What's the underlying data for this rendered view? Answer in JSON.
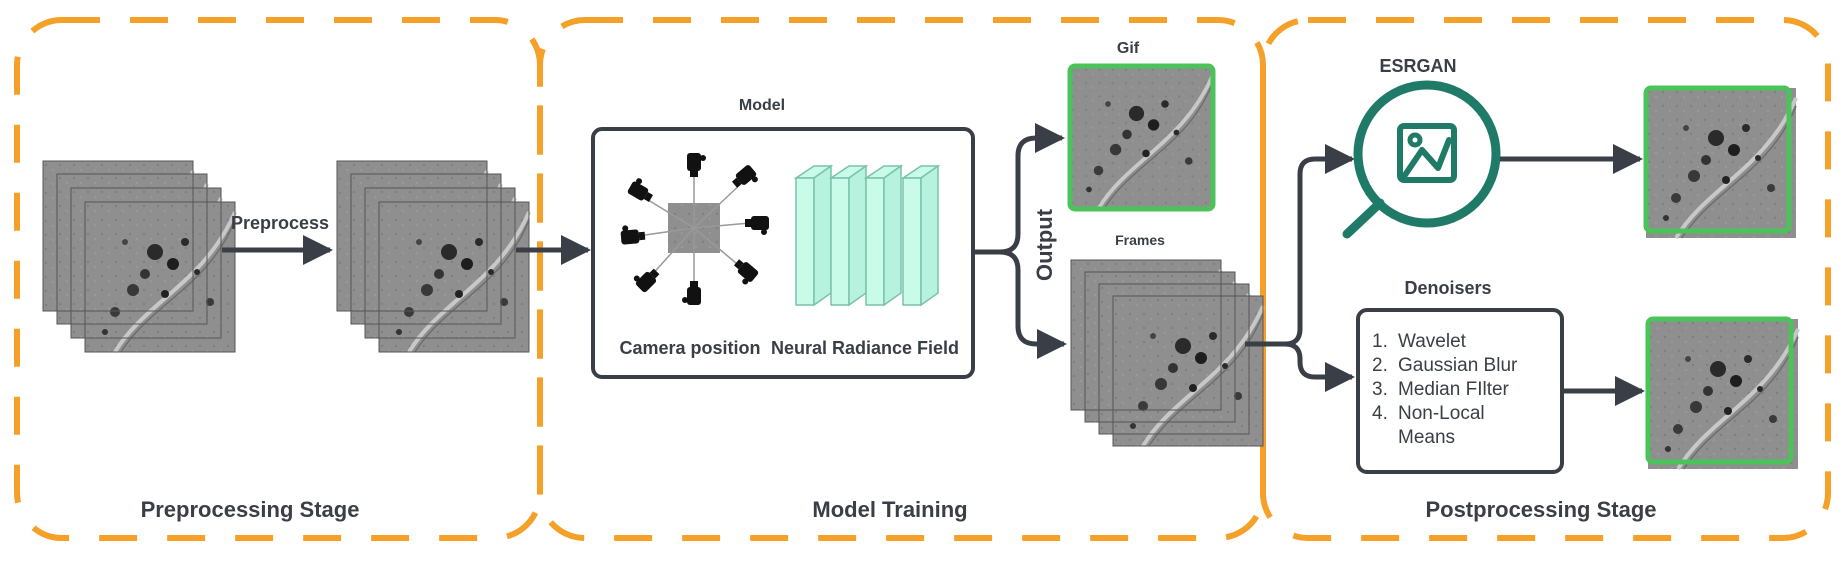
{
  "colors": {
    "stage_border": "#f5a028",
    "frame_border": "#4cc25a",
    "arrow": "#3a3f47",
    "nerf_fill": "#c9fbe9",
    "nerf_stroke": "#7ac2ac",
    "esrgan_icon": "#1f7a68"
  },
  "stages": {
    "preprocessing": "Preprocessing Stage",
    "training": "Model Training",
    "postprocessing": "Postprocessing Stage"
  },
  "preprocess": {
    "arrow_label": "Preprocess"
  },
  "model": {
    "title": "Model",
    "camera_label": "Camera position",
    "nerf_label": "Neural Radiance Field"
  },
  "output": {
    "label": "Output",
    "gif_label": "Gif",
    "frames_label": "Frames"
  },
  "esrgan": {
    "label": "ESRGAN",
    "icon": "zoom-image-icon"
  },
  "denoisers": {
    "title": "Denoisers",
    "items": [
      {
        "num": "1.",
        "lines": [
          "Wavelet"
        ]
      },
      {
        "num": "2.",
        "lines": [
          "Gaussian Blur"
        ]
      },
      {
        "num": "3.",
        "lines": [
          "Median FIlter"
        ]
      },
      {
        "num": "4.",
        "lines": [
          "Non-Local",
          "Means"
        ]
      }
    ]
  }
}
